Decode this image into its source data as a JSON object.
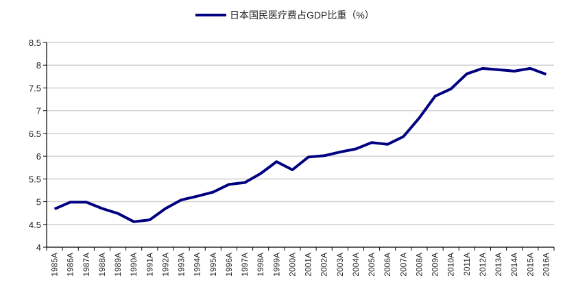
{
  "chart_data": {
    "type": "line",
    "title": "",
    "xlabel": "",
    "ylabel": "",
    "ylim": [
      4,
      8.5
    ],
    "yticks": [
      "4",
      "4.5",
      "5",
      "5.5",
      "6",
      "6.5",
      "7",
      "7.5",
      "8",
      "8.5"
    ],
    "grid": true,
    "legend_placement": "top-center",
    "categories": [
      "1985A",
      "1986A",
      "1987A",
      "1988A",
      "1989A",
      "1990A",
      "1991A",
      "1992A",
      "1993A",
      "1994A",
      "1995A",
      "1996A",
      "1997A",
      "1998A",
      "1999A",
      "2000A",
      "2001A",
      "2002A",
      "2003A",
      "2004A",
      "2005A",
      "2006A",
      "2007A",
      "2008A",
      "2009A",
      "2010A",
      "2011A",
      "2012A",
      "2013A",
      "2014A",
      "2015A",
      "2016A"
    ],
    "series": [
      {
        "name": "日本国民医疗费占GDP比重（%）",
        "color": "#000080",
        "values": [
          4.84,
          4.99,
          4.99,
          4.85,
          4.74,
          4.56,
          4.6,
          4.85,
          5.04,
          5.12,
          5.21,
          5.38,
          5.42,
          5.62,
          5.88,
          5.7,
          5.98,
          6.01,
          6.09,
          6.16,
          6.3,
          6.26,
          6.43,
          6.84,
          7.32,
          7.48,
          7.81,
          7.93,
          7.9,
          7.87,
          7.93,
          7.8
        ]
      }
    ]
  }
}
